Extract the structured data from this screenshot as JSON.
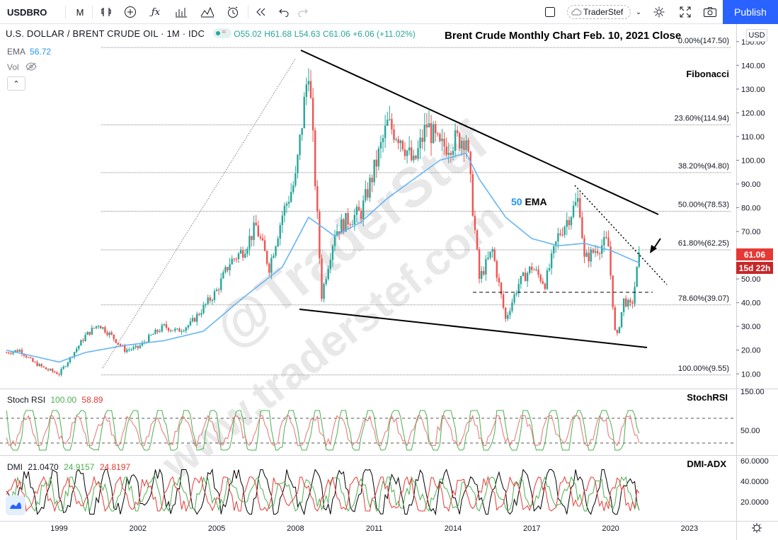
{
  "toolbar": {
    "symbol": "USDBRO",
    "interval": "M",
    "layout_name": "TraderStef",
    "publish_label": "Publish",
    "icons": [
      "bar-type-icon",
      "add-indicator-plus-icon",
      "function-fx-icon",
      "indicators-icon",
      "templates-icon",
      "alert-clock-icon",
      "replay-icon",
      "undo-icon",
      "redo-icon",
      "square-icon",
      "cloud-icon",
      "chevron-down-icon",
      "settings-gear-icon",
      "fullscreen-icon",
      "camera-icon"
    ]
  },
  "legend": {
    "symbol_text": "U.S. DOLLAR / BRENT CRUDE OIL · 1M · IDC",
    "open": "O55.02",
    "high": "H61.68",
    "low": "L54.63",
    "close": "C61.06",
    "change": "+6.06 (+11.02%)",
    "ema_label": "EMA",
    "ema_value": "56.72",
    "vol_label": "Vol"
  },
  "overlay_title": "Brent Crude Monthly Chart Feb. 10, 2021 Close",
  "annotations": {
    "fibonacci": "Fibonacci",
    "ema50": "50 EMA",
    "watermark1": "@TraderStef",
    "watermark2": "www.traderstef.com"
  },
  "price_axis": {
    "currency": "USD",
    "last_price": "61.06",
    "countdown": "15d 22h",
    "colors": {
      "last_price": "#e53935",
      "countdown": "#c62828"
    }
  },
  "stoch": {
    "label": "Stoch RSI",
    "k": "100.00",
    "d": "58.89",
    "title": "StochRSI",
    "ticks": [
      "150.00",
      "50.00"
    ]
  },
  "dmi": {
    "label": "DMI",
    "v1": "21.0470",
    "v2": "24.9157",
    "v3": "24.8197",
    "title": "DMI-ADX",
    "ticks": [
      "60.0000",
      "40.0000",
      "20.0000"
    ]
  },
  "chart_data": {
    "type": "candlestick",
    "symbol": "USDBRO",
    "interval": "1M",
    "ylim": [
      5,
      160
    ],
    "y_ticks": [
      10,
      20,
      30,
      40,
      50,
      60,
      70,
      80,
      90,
      100,
      110,
      120,
      130,
      140,
      150
    ],
    "x_ticks": [
      "1999",
      "2002",
      "2005",
      "2008",
      "2011",
      "2014",
      "2017",
      "2020",
      "2023"
    ],
    "fib_levels": [
      {
        "label": "0.00%(147.50)",
        "value": 147.5
      },
      {
        "label": "23.60%(114.94)",
        "value": 114.94
      },
      {
        "label": "38.20%(94.80)",
        "value": 94.8
      },
      {
        "label": "50.00%(78.53)",
        "value": 78.53
      },
      {
        "label": "61.80%(62.25)",
        "value": 62.25
      },
      {
        "label": "78.60%(39.07)",
        "value": 39.07
      },
      {
        "label": "100.00%(9.55)",
        "value": 9.55
      }
    ],
    "price_series": [
      [
        1997.0,
        19.0
      ],
      [
        1997.5,
        20.0
      ],
      [
        1998.0,
        15.0
      ],
      [
        1998.5,
        12.0
      ],
      [
        1999.0,
        10.0
      ],
      [
        1999.5,
        18.0
      ],
      [
        2000.0,
        26.0
      ],
      [
        2000.5,
        31.0
      ],
      [
        2001.0,
        26.0
      ],
      [
        2001.5,
        20.0
      ],
      [
        2002.0,
        21.0
      ],
      [
        2002.5,
        26.0
      ],
      [
        2003.0,
        30.0
      ],
      [
        2003.5,
        28.0
      ],
      [
        2004.0,
        31.0
      ],
      [
        2004.5,
        38.0
      ],
      [
        2005.0,
        45.0
      ],
      [
        2005.5,
        57.0
      ],
      [
        2006.0,
        62.0
      ],
      [
        2006.5,
        72.0
      ],
      [
        2007.0,
        55.0
      ],
      [
        2007.5,
        77.0
      ],
      [
        2008.0,
        92.0
      ],
      [
        2008.5,
        140.0
      ],
      [
        2009.0,
        43.0
      ],
      [
        2009.5,
        70.0
      ],
      [
        2010.0,
        75.0
      ],
      [
        2010.5,
        78.0
      ],
      [
        2011.0,
        96.0
      ],
      [
        2011.5,
        115.0
      ],
      [
        2012.0,
        110.0
      ],
      [
        2012.5,
        98.0
      ],
      [
        2013.0,
        115.0
      ],
      [
        2013.5,
        105.0
      ],
      [
        2014.0,
        108.0
      ],
      [
        2014.5,
        110.0
      ],
      [
        2015.0,
        50.0
      ],
      [
        2015.5,
        62.0
      ],
      [
        2016.0,
        33.0
      ],
      [
        2016.5,
        48.0
      ],
      [
        2017.0,
        55.0
      ],
      [
        2017.5,
        48.0
      ],
      [
        2018.0,
        68.0
      ],
      [
        2018.5,
        78.0
      ],
      [
        2018.8,
        84.0
      ],
      [
        2019.0,
        58.0
      ],
      [
        2019.5,
        63.0
      ],
      [
        2019.9,
        66.0
      ],
      [
        2020.2,
        23.0
      ],
      [
        2020.5,
        41.0
      ],
      [
        2020.8,
        38.0
      ],
      [
        2021.1,
        61.06
      ]
    ],
    "ema50_series": [
      [
        1997.0,
        20.0
      ],
      [
        1999.0,
        15.0
      ],
      [
        2000.0,
        19.0
      ],
      [
        2001.5,
        22.0
      ],
      [
        2003.0,
        24.0
      ],
      [
        2004.5,
        28.0
      ],
      [
        2006.0,
        42.0
      ],
      [
        2007.5,
        55.0
      ],
      [
        2008.5,
        76.0
      ],
      [
        2009.5,
        68.0
      ],
      [
        2010.5,
        74.0
      ],
      [
        2011.5,
        84.0
      ],
      [
        2012.5,
        92.0
      ],
      [
        2013.5,
        100.0
      ],
      [
        2014.5,
        103.0
      ],
      [
        2015.0,
        92.0
      ],
      [
        2016.0,
        76.0
      ],
      [
        2017.0,
        67.0
      ],
      [
        2018.0,
        64.0
      ],
      [
        2019.0,
        65.0
      ],
      [
        2020.0,
        62.0
      ],
      [
        2021.1,
        56.72
      ]
    ]
  }
}
